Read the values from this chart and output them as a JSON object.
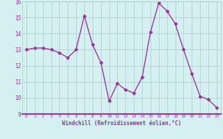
{
  "x": [
    0,
    1,
    2,
    3,
    4,
    5,
    6,
    7,
    8,
    9,
    10,
    11,
    12,
    13,
    14,
    15,
    16,
    17,
    18,
    19,
    20,
    21,
    22,
    23
  ],
  "y": [
    13.0,
    13.1,
    13.1,
    13.0,
    12.8,
    12.5,
    13.0,
    15.1,
    13.3,
    12.2,
    9.8,
    10.9,
    10.5,
    10.3,
    11.3,
    14.1,
    15.9,
    15.4,
    14.6,
    13.0,
    11.5,
    10.1,
    9.9,
    9.4
  ],
  "line_color": "#993399",
  "marker": "D",
  "marker_size": 2.5,
  "linewidth": 1.0,
  "bg_color": "#d4f0f0",
  "grid_color": "#aacccc",
  "xlabel": "Windchill (Refroidissement éolien,°C)",
  "xlabel_color": "#993399",
  "tick_color": "#993399",
  "ylim": [
    9,
    16
  ],
  "yticks": [
    9,
    10,
    11,
    12,
    13,
    14,
    15,
    16
  ],
  "xticks": [
    0,
    1,
    2,
    3,
    4,
    5,
    6,
    7,
    8,
    9,
    10,
    11,
    12,
    13,
    14,
    15,
    16,
    17,
    18,
    19,
    20,
    21,
    22,
    23
  ],
  "spine_color": "#993399"
}
